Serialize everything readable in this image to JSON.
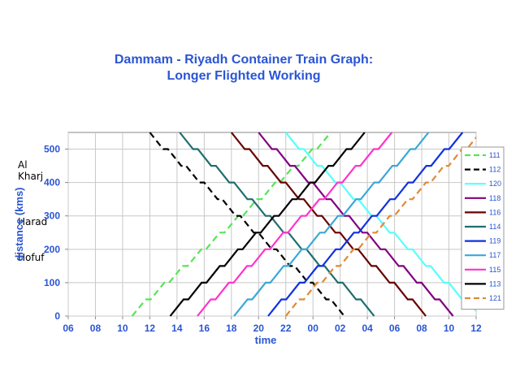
{
  "chart_data": {
    "type": "line",
    "title": "Dammam - Riyadh Container Train Graph:",
    "subtitle": "Longer Flighted Working",
    "xlabel": "time",
    "ylabel": "distance (kms)",
    "x_tick_labels": [
      "06",
      "08",
      "10",
      "12",
      "14",
      "16",
      "18",
      "20",
      "22",
      "00",
      "02",
      "04",
      "06",
      "08",
      "10",
      "12"
    ],
    "x_unit": "hours elapsed from 06:00",
    "xlim": [
      0,
      30
    ],
    "y_ticks": [
      0,
      100,
      200,
      300,
      400,
      500
    ],
    "ylim": [
      0,
      550
    ],
    "grid": true,
    "legend_position": "right",
    "station_labels": [
      {
        "name": "Al Kharj",
        "distance": 450
      },
      {
        "name": "Harad",
        "distance": 280
      },
      {
        "name": "Hofuf",
        "distance": 172
      }
    ],
    "series": [
      {
        "name": "111",
        "color": "#55e555",
        "dash": "dashed",
        "direction": "up",
        "start_x": 4.7,
        "end_x": 19.3
      },
      {
        "name": "112",
        "color": "#000000",
        "dash": "dashed",
        "direction": "down",
        "start_x": 6.0,
        "end_x": 20.3
      },
      {
        "name": "120",
        "color": "#55ffff",
        "dash": "solid",
        "direction": "down",
        "start_x": 16.0,
        "end_x": 30.3
      },
      {
        "name": "118",
        "color": "#800080",
        "dash": "solid",
        "direction": "down",
        "start_x": 14.0,
        "end_x": 28.3
      },
      {
        "name": "116",
        "color": "#660000",
        "dash": "solid",
        "direction": "down",
        "start_x": 12.0,
        "end_x": 26.3
      },
      {
        "name": "114",
        "color": "#1f6e6e",
        "dash": "solid",
        "direction": "down",
        "start_x": 8.2,
        "end_x": 22.5
      },
      {
        "name": "119",
        "color": "#1030e0",
        "dash": "solid",
        "direction": "up",
        "start_x": 14.7,
        "end_x": 29.0
      },
      {
        "name": "117",
        "color": "#3aa8d8",
        "dash": "solid",
        "direction": "up",
        "start_x": 12.2,
        "end_x": 26.5
      },
      {
        "name": "115",
        "color": "#ff33cc",
        "dash": "solid",
        "direction": "up",
        "start_x": 9.5,
        "end_x": 23.8
      },
      {
        "name": "113",
        "color": "#000000",
        "dash": "solid",
        "direction": "up",
        "start_x": 7.5,
        "end_x": 21.8
      },
      {
        "name": "121",
        "color": "#e08a38",
        "dash": "dashed",
        "direction": "up",
        "start_x": 16.0,
        "end_x": 30.3
      }
    ]
  }
}
